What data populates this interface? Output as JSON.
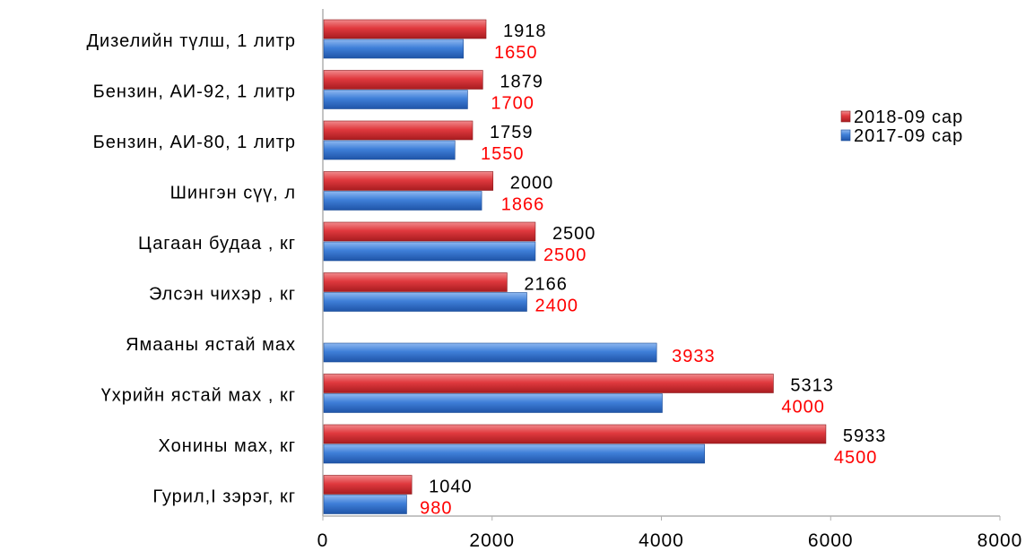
{
  "chart_data": {
    "type": "bar",
    "orientation": "horizontal",
    "categories": [
      "Дизелийн түлш, 1 литр",
      "Бензин, АИ-92, 1 литр",
      "Бензин, АИ-80, 1 литр",
      "Шингэн сүү, л",
      "Цагаан будаа , кг",
      "Элсэн чихэр , кг",
      "Ямааны ястай мах",
      "Үхрийн ястай мах , кг",
      "Хонины  мах, кг",
      "Гурил,I зэрэг, кг"
    ],
    "series": [
      {
        "name": "2018-09  сар",
        "color": "#e0393e",
        "values": [
          1918,
          1879,
          1759,
          2000,
          2500,
          2166,
          null,
          5313,
          5933,
          1040
        ],
        "labels": [
          "1918",
          "1879",
          "1759",
          "2000",
          "2500",
          "2166",
          "",
          "5313",
          "5933",
          "1040"
        ]
      },
      {
        "name": "2017-09  сар",
        "color": "#3f7fd8",
        "values": [
          1650,
          1700,
          1550,
          1866,
          2500,
          2400,
          3933,
          4000,
          4500,
          980
        ],
        "labels": [
          "1650",
          "1700",
          "1550",
          "1866",
          "2500",
          "2400",
          "3933",
          "4000",
          "4500",
          "980"
        ]
      }
    ],
    "x_ticks": [
      "0",
      "2000",
      "4000",
      "6000",
      "8000"
    ],
    "xlim": [
      0,
      8000
    ],
    "legend_position": "right",
    "grid": false,
    "title": "",
    "xlabel": "",
    "ylabel": ""
  }
}
